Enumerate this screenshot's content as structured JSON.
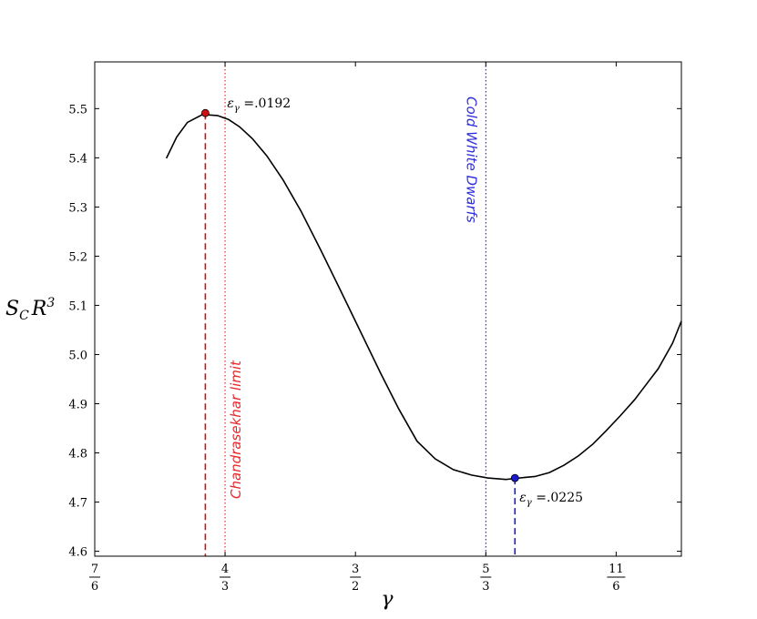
{
  "chart_data": {
    "type": "line",
    "title": "",
    "xlabel": "γ",
    "ylabel": {
      "base": "S",
      "sub": "C",
      "mid": "R",
      "sup": "3"
    },
    "xlim": [
      1.1667,
      1.9167
    ],
    "ylim": [
      4.59,
      5.595
    ],
    "x_ticks": [
      {
        "value": 1.1667,
        "num": "7",
        "den": "6"
      },
      {
        "value": 1.3333,
        "num": "4",
        "den": "3"
      },
      {
        "value": 1.5,
        "num": "3",
        "den": "2"
      },
      {
        "value": 1.6667,
        "num": "5",
        "den": "3"
      },
      {
        "value": 1.8333,
        "num": "11",
        "den": "6"
      }
    ],
    "y_ticks": [
      "4.6",
      "4.7",
      "4.8",
      "4.9",
      "5.0",
      "5.1",
      "5.2",
      "5.3",
      "5.4",
      "5.5"
    ],
    "series": [
      {
        "color": "#000000",
        "x": [
          1.2583,
          1.2714,
          1.2852,
          1.3045,
          1.3236,
          1.3377,
          1.3519,
          1.3682,
          1.3867,
          1.4075,
          1.4306,
          1.4561,
          1.4792,
          1.5045,
          1.5322,
          1.5555,
          1.5787,
          1.6019,
          1.6251,
          1.6483,
          1.6692,
          1.6923,
          1.7039,
          1.7155,
          1.7295,
          1.748,
          1.7666,
          1.7851,
          1.8036,
          1.8198,
          1.8383,
          1.8568,
          1.8731,
          1.887,
          1.9054,
          1.9167
        ],
        "y": [
          5.399,
          5.442,
          5.472,
          5.488,
          5.486,
          5.478,
          5.463,
          5.439,
          5.404,
          5.355,
          5.291,
          5.211,
          5.136,
          5.053,
          4.962,
          4.889,
          4.824,
          4.788,
          4.766,
          4.755,
          4.749,
          4.746,
          4.748,
          4.75,
          4.752,
          4.76,
          4.775,
          4.794,
          4.818,
          4.844,
          4.875,
          4.908,
          4.942,
          4.971,
          5.023,
          5.068
        ]
      }
    ],
    "vertical_lines": [
      {
        "x": 1.3333,
        "label": "Chandrasekhar limit",
        "color": "#e8292c",
        "style": "dotted"
      },
      {
        "x": 1.6667,
        "label": "Cold White Dwarfs",
        "color": "#2d2ddb",
        "style": "dotted"
      }
    ],
    "markers": [
      {
        "x": 1.3081,
        "y": 5.491,
        "color": "#cc1111",
        "label_pre": "ε",
        "label_sub": "γ",
        "label_post": " =.0192"
      },
      {
        "x": 1.7039,
        "y": 4.749,
        "color": "#1a1acc",
        "label_pre": "ε",
        "label_sub": "γ",
        "label_post": " =.0225"
      }
    ]
  }
}
